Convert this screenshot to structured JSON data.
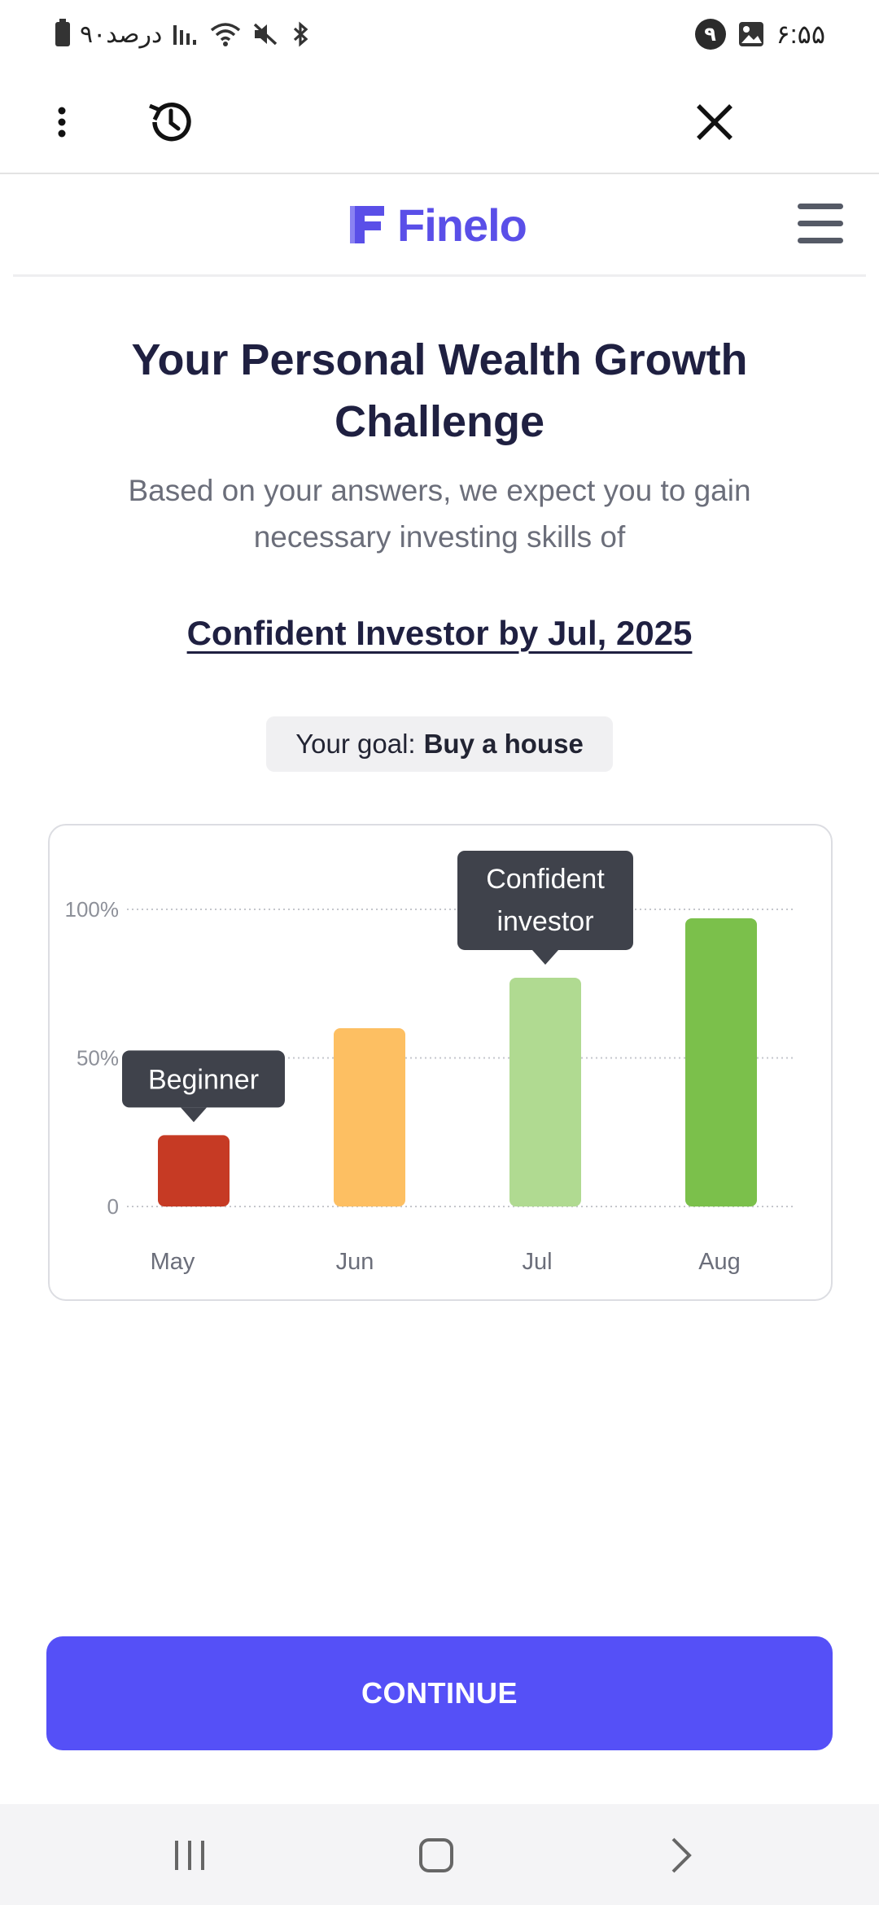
{
  "status_bar": {
    "battery_text": "۹۰درصد",
    "time": "۶:۵۵",
    "notification_count": "۹",
    "icons": [
      "battery-icon",
      "signal-icon",
      "wifi-icon",
      "mute-icon",
      "bluetooth-icon",
      "gallery-icon"
    ]
  },
  "toolbar": {
    "icons": [
      "more-vert-icon",
      "history-icon",
      "close-icon"
    ]
  },
  "header": {
    "logo_text": "Finelo",
    "brand_color": "#5a4fe8",
    "menu_icon": "hamburger-menu-icon"
  },
  "main": {
    "title": "Your Personal Wealth Growth Challenge",
    "subtitle": "Based on your answers, we expect you to gain necessary investing skills of",
    "target": "Confident Investor by Jul, 2025",
    "goal_prefix": "Your goal:",
    "goal_value": "Buy a house"
  },
  "chart_data": {
    "type": "bar",
    "categories": [
      "May",
      "Jun",
      "Jul",
      "Aug"
    ],
    "values": [
      24,
      60,
      77,
      97
    ],
    "colors": [
      "#c63a24",
      "#fdbf62",
      "#b0da91",
      "#7bc04b"
    ],
    "ylim": [
      0,
      100
    ],
    "yticks": [
      0,
      50,
      100
    ],
    "ytick_labels": [
      "0",
      "50%",
      "100%"
    ],
    "grid": true,
    "annotations": [
      {
        "category": "May",
        "text": "Beginner"
      },
      {
        "category": "Jul",
        "text": "Confident investor"
      }
    ]
  },
  "cta": {
    "label": "CONTINUE",
    "color": "#5550f7"
  },
  "nav_bar": {
    "icons": [
      "recent-apps-icon",
      "home-icon",
      "back-icon"
    ]
  }
}
